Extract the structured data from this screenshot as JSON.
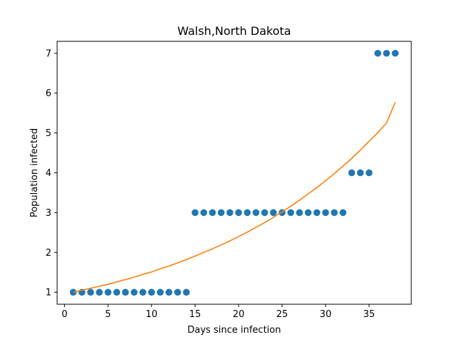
{
  "chart_data": {
    "type": "scatter",
    "title": "Walsh,North Dakota",
    "xlabel": "Days since infection",
    "ylabel": "Population infected",
    "xlim": [
      -0.85,
      39.85
    ],
    "ylim": [
      0.7,
      7.3
    ],
    "xticks": [
      0,
      5,
      10,
      15,
      20,
      25,
      30,
      35
    ],
    "yticks": [
      1,
      2,
      3,
      4,
      5,
      6,
      7
    ],
    "grid": false,
    "series": [
      {
        "kind": "scatter",
        "color": "#1f77b4",
        "x": [
          1,
          2,
          3,
          4,
          5,
          6,
          7,
          8,
          9,
          10,
          11,
          12,
          13,
          14,
          15,
          16,
          17,
          18,
          19,
          20,
          21,
          22,
          23,
          24,
          25,
          26,
          27,
          28,
          29,
          30,
          31,
          32,
          33,
          34,
          35,
          36,
          37,
          38
        ],
        "y": [
          1,
          1,
          1,
          1,
          1,
          1,
          1,
          1,
          1,
          1,
          1,
          1,
          1,
          1,
          3,
          3,
          3,
          3,
          3,
          3,
          3,
          3,
          3,
          3,
          3,
          3,
          3,
          3,
          3,
          3,
          3,
          3,
          4,
          4,
          4,
          7,
          7,
          7
        ]
      },
      {
        "kind": "line",
        "color": "#ff7f0e",
        "x": [
          1,
          2,
          3,
          4,
          5,
          6,
          7,
          8,
          9,
          10,
          11,
          12,
          13,
          14,
          15,
          16,
          17,
          18,
          19,
          20,
          21,
          22,
          23,
          24,
          25,
          26,
          27,
          28,
          29,
          30,
          31,
          32,
          33,
          34,
          35,
          36,
          37,
          38
        ],
        "y": [
          1.0,
          1.05,
          1.1,
          1.15,
          1.2,
          1.26,
          1.32,
          1.38,
          1.45,
          1.51,
          1.59,
          1.66,
          1.74,
          1.82,
          1.91,
          2.0,
          2.09,
          2.19,
          2.29,
          2.4,
          2.51,
          2.63,
          2.75,
          2.88,
          3.02,
          3.16,
          3.31,
          3.47,
          3.63,
          3.8,
          3.98,
          4.17,
          4.36,
          4.57,
          4.79,
          5.01,
          5.25,
          5.77
        ]
      }
    ]
  }
}
